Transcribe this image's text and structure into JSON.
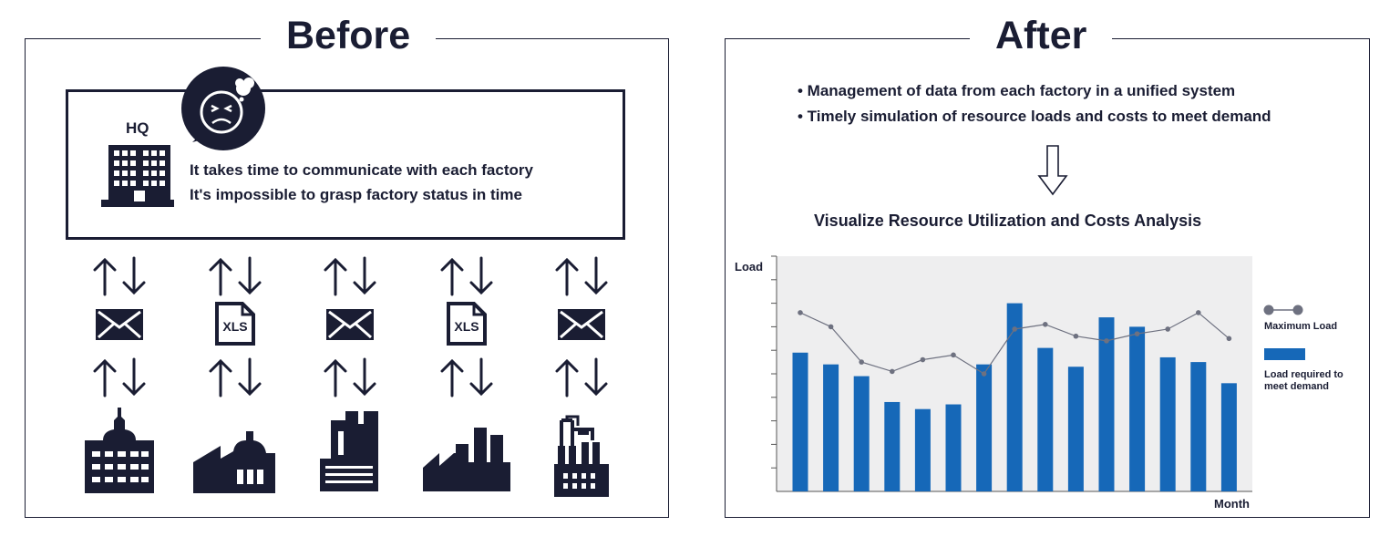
{
  "before": {
    "title": "Before",
    "hq": {
      "label": "HQ",
      "line1": "It takes time to communicate with each factory",
      "line2": "It's impossible to grasp factory status in time"
    },
    "channels": [
      "envelope-icon",
      "xls-file-icon",
      "envelope-icon",
      "xls-file-icon",
      "envelope-icon"
    ],
    "xls_label": "XLS"
  },
  "after": {
    "title": "After",
    "bullet1": "• Management of data from each factory in a unified system",
    "bullet2": "• Timely simulation of resource loads and costs to meet demand",
    "chart_title": "Visualize Resource Utilization and Costs Analysis"
  },
  "chart_data": {
    "type": "bar",
    "title": "Visualize Resource Utilization and Costs Analysis",
    "xlabel": "Month",
    "ylabel": "Load",
    "ylim": [
      0,
      10
    ],
    "grid": false,
    "legend_placement": "right",
    "categories": [
      "",
      "",
      "",
      "",
      "",
      "",
      "",
      "",
      "",
      "",
      "",
      "",
      "",
      "",
      ""
    ],
    "series": [
      {
        "name": "Load required to meet demand",
        "type": "bar",
        "color": "#1668b8",
        "values": [
          5.9,
          5.4,
          4.9,
          3.8,
          3.5,
          3.7,
          5.4,
          8.0,
          6.1,
          5.3,
          7.4,
          7.0,
          5.7,
          5.5,
          4.6
        ]
      },
      {
        "name": "Maximum Load",
        "type": "line",
        "color": "#6e7180",
        "values": [
          7.6,
          7.0,
          5.5,
          5.1,
          5.6,
          5.8,
          5.0,
          6.9,
          7.1,
          6.6,
          6.4,
          6.7,
          6.9,
          7.6,
          6.5
        ]
      }
    ]
  }
}
